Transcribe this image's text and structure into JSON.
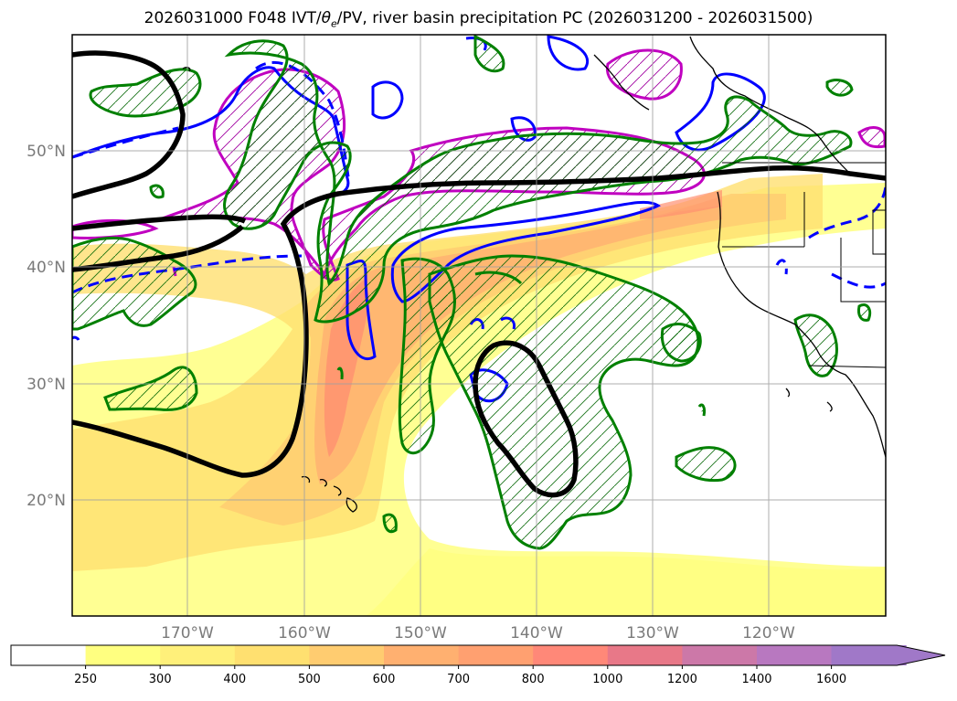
{
  "title_prefix": "2026031000 F048 IVT/",
  "title_theta": "θ",
  "title_sub": "e",
  "title_suffix": "/PV, river basin precipitation PC (2026031200 - 2026031500)",
  "lat_labels": [
    "50°N",
    "40°N",
    "30°N",
    "20°N"
  ],
  "lon_labels": [
    "170°W",
    "160°W",
    "150°W",
    "140°W",
    "130°W",
    "120°W"
  ],
  "colorbar": {
    "ticks": [
      "250",
      "300",
      "400",
      "500",
      "600",
      "700",
      "800",
      "1000",
      "1200",
      "1400",
      "1600"
    ],
    "colors": [
      "#ffffff",
      "#ffff80",
      "#fff07a",
      "#ffe070",
      "#ffcc70",
      "#ffb070",
      "#ffa070",
      "#ff8878",
      "#e87888",
      "#cc78a8",
      "#b878c0",
      "#a078c8"
    ]
  },
  "colors": {
    "ivt_contour": "#008000",
    "theta_e": "#0000ff",
    "pv": "#c000c0",
    "geopotential": "#000000"
  }
}
